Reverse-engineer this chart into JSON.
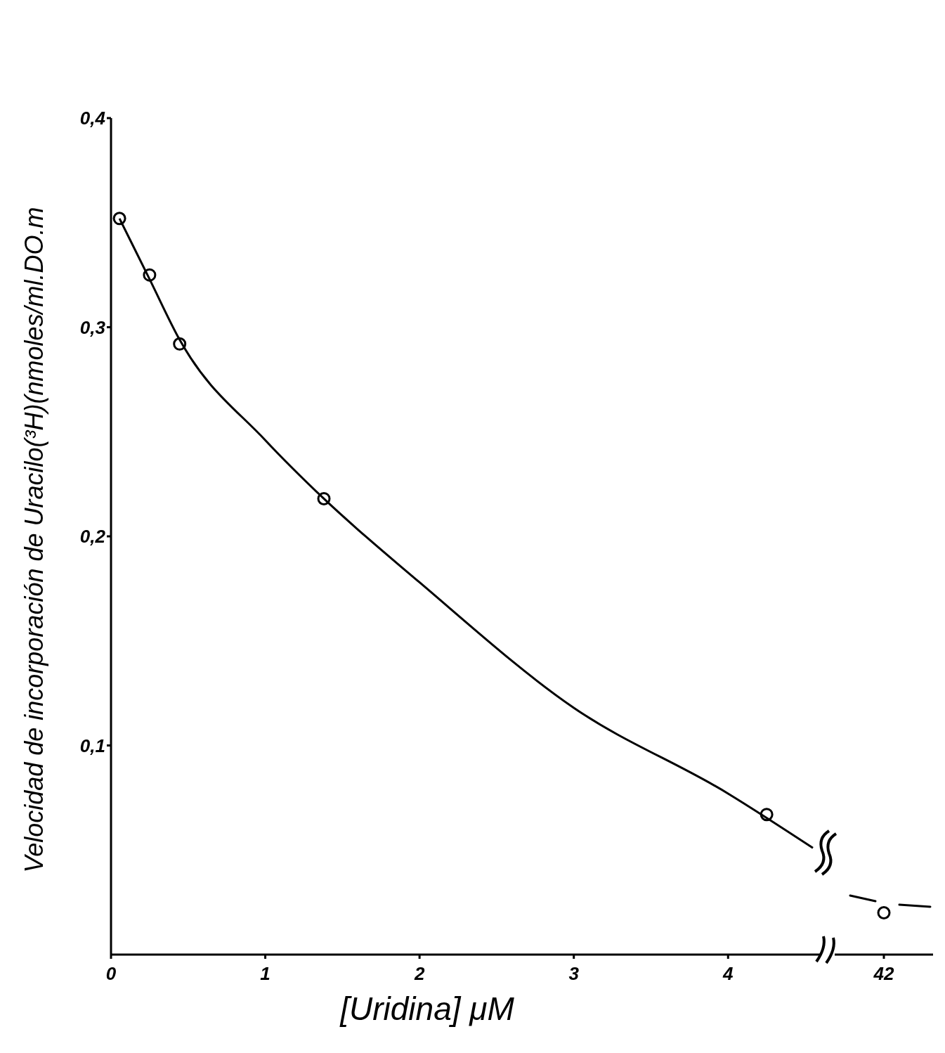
{
  "chart_data": [
    {
      "type": "line",
      "ylabel": "Velocidad de incorporación de Uracilo(³H)(nmoles/ml.DO.m",
      "xlabel": "[Uridina] μM",
      "xlim": [
        0,
        4.6
      ],
      "xticks": [
        0,
        1,
        2,
        3,
        4
      ],
      "ylim": [
        0,
        0.4
      ],
      "yticks": [
        {
          "value": 0.1,
          "label": "0,1"
        },
        {
          "value": 0.2,
          "label": "0,2"
        },
        {
          "value": 0.3,
          "label": "0,3"
        },
        {
          "value": 0.4,
          "label": "0,4"
        }
      ],
      "grid": false,
      "legend": false,
      "series": [
        {
          "type": "scatter",
          "marker": "circle",
          "color": "#000000",
          "x": [
            0.055,
            0.25,
            0.445,
            1.38,
            4.25
          ],
          "values": [
            0.352,
            0.325,
            0.292,
            0.218,
            0.067
          ]
        },
        {
          "marker": "none",
          "color": "#000000",
          "x": [
            0.055,
            0.25,
            0.445,
            1,
            1.38,
            2,
            3,
            4,
            4.55
          ],
          "values": [
            0.352,
            0.323,
            0.294,
            0.246,
            0.218,
            0.178,
            0.118,
            0.077,
            0.051
          ]
        }
      ]
    },
    {
      "type": "scatter",
      "categories": [
        "42"
      ],
      "ylim": [
        0,
        0.4
      ],
      "tick_labels": "x",
      "grid": false,
      "legend": false,
      "series": [
        {
          "marker": "circle",
          "color": "#000000",
          "values": [
            0.02
          ]
        }
      ]
    }
  ]
}
